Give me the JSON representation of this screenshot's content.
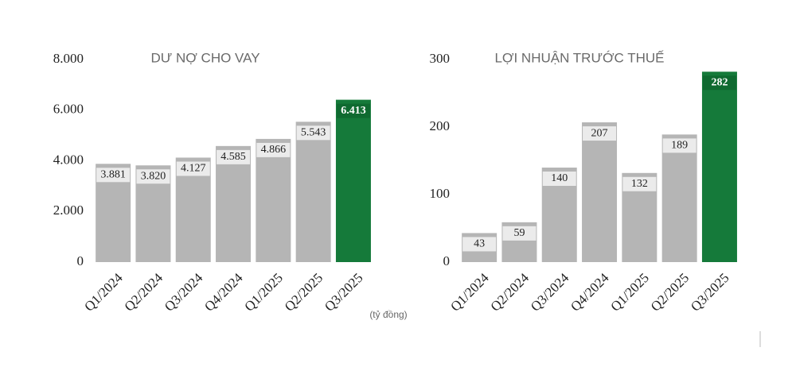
{
  "chart_data": [
    {
      "type": "bar",
      "title": "DƯ NỢ CHO VAY",
      "categories": [
        "Q1/2024",
        "Q2/2024",
        "Q3/2024",
        "Q4/2024",
        "Q1/2025",
        "Q2/2025",
        "Q3/2025"
      ],
      "values": [
        3881,
        3820,
        4127,
        4585,
        4866,
        5543,
        6413
      ],
      "value_labels": [
        "3.881",
        "3.820",
        "4.127",
        "4.585",
        "4.866",
        "5.543",
        "6.413"
      ],
      "colors": [
        "#b5b5b5",
        "#b5b5b5",
        "#b5b5b5",
        "#b5b5b5",
        "#b5b5b5",
        "#b5b5b5",
        "#157a3a"
      ],
      "ylim": [
        0,
        8000
      ],
      "yticks": [
        0,
        {
          "value": 2000,
          "label": "2.000"
        },
        {
          "value": 4000,
          "label": "4.000"
        },
        {
          "value": 6000,
          "label": "6.000"
        },
        {
          "value": 8000,
          "label": "8.000"
        }
      ],
      "annotation": "(tỷ đồng)"
    },
    {
      "type": "bar",
      "title": "LỢI NHUẬN TRƯỚC THUẾ",
      "categories": [
        "Q1/2024",
        "Q2/2024",
        "Q3/2024",
        "Q4/2024",
        "Q1/2025",
        "Q2/2025",
        "Q3/2025"
      ],
      "values": [
        43,
        59,
        140,
        207,
        132,
        189,
        282
      ],
      "colors": [
        "#b5b5b5",
        "#b5b5b5",
        "#b5b5b5",
        "#b5b5b5",
        "#b5b5b5",
        "#b5b5b5",
        "#157a3a"
      ],
      "ylim": [
        0,
        300
      ],
      "yticks": [
        0,
        100,
        200,
        300
      ]
    }
  ]
}
